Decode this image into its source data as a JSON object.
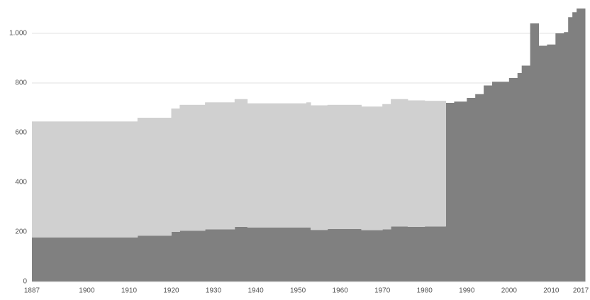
{
  "chart_data": {
    "type": "step-area",
    "x": [
      1887,
      1900,
      1912,
      1920,
      1922,
      1928,
      1935,
      1938,
      1952,
      1953,
      1957,
      1965,
      1970,
      1972,
      1976,
      1980,
      1985,
      1987,
      1990,
      1992,
      1994,
      1996,
      2000,
      2002,
      2003,
      2005,
      2007,
      2009,
      2011,
      2013,
      2014,
      2015,
      2016,
      2017
    ],
    "series": [
      {
        "color": "#808080",
        "values": [
          178,
          178,
          185,
          200,
          205,
          210,
          220,
          218,
          218,
          208,
          212,
          207,
          210,
          222,
          220,
          222,
          720,
          725,
          740,
          755,
          790,
          805,
          820,
          840,
          870,
          1040,
          950,
          955,
          1000,
          1005,
          1065,
          1085,
          1100,
          1100
        ]
      },
      {
        "color": "#d0d0d0",
        "values": [
          467,
          467,
          475,
          497,
          507,
          512,
          515,
          500,
          504,
          502,
          500,
          498,
          505,
          513,
          510,
          506,
          null,
          null,
          null,
          null,
          null,
          null,
          null,
          null,
          null,
          null,
          null,
          null,
          null,
          null,
          null,
          null,
          null,
          null
        ]
      }
    ],
    "xlim": [
      1887,
      2018
    ],
    "xticks": [
      1887,
      1900,
      1910,
      1920,
      1930,
      1940,
      1950,
      1960,
      1970,
      1980,
      1990,
      2000,
      2010,
      2017
    ],
    "ylim": [
      0,
      1100
    ],
    "yticks": [
      0,
      200,
      400,
      600,
      800,
      {
        "value": 1000,
        "label": "1.000"
      }
    ],
    "grid": true
  }
}
